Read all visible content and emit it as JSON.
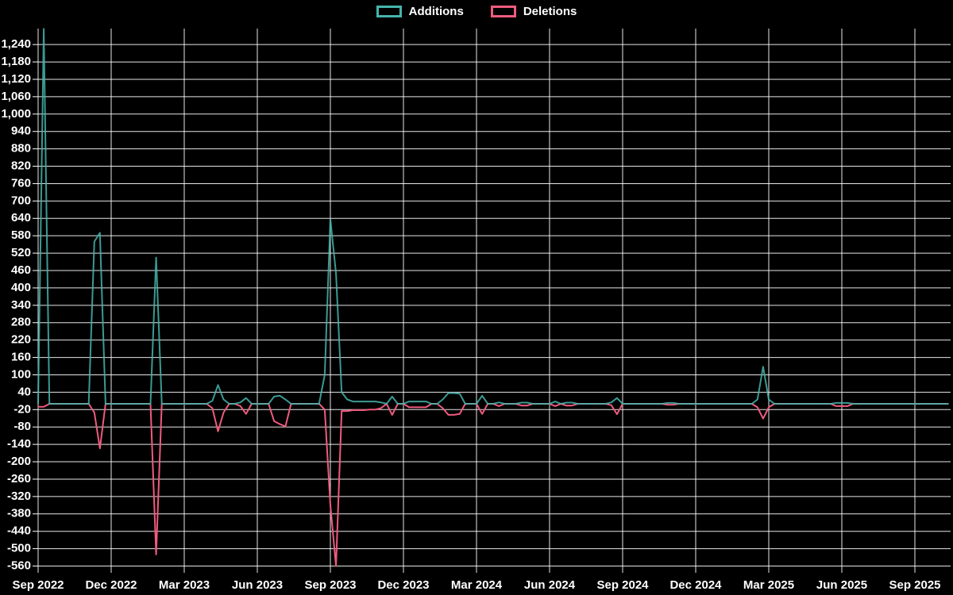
{
  "legend": {
    "items": [
      {
        "label": "Additions",
        "color": "#45b5ad"
      },
      {
        "label": "Deletions",
        "color": "#ef5b7e"
      }
    ]
  },
  "chart_data": {
    "type": "line",
    "title": "",
    "xlabel": "",
    "ylabel": "",
    "background_color": "#000000",
    "grid": true,
    "grid_color": "#ffffff",
    "legend_position": "top-center",
    "series": [
      {
        "name": "Additions",
        "color": "#45b5ad"
      },
      {
        "name": "Deletions",
        "color": "#ef5b7e"
      }
    ],
    "x_axis": {
      "unit": "weeks",
      "total_weeks": 163,
      "tick_weeks": [
        0,
        13,
        26,
        39,
        52,
        65,
        78,
        91,
        104,
        117,
        130,
        143,
        156
      ],
      "tick_labels": [
        "Sep 2022",
        "Dec 2022",
        "Mar 2023",
        "Jun 2023",
        "Sep 2023",
        "Dec 2023",
        "Mar 2024",
        "Jun 2024",
        "Sep 2024",
        "Dec 2024",
        "Mar 2025",
        "Jun 2025",
        "Sep 2025"
      ]
    },
    "y_axis": {
      "min": -583,
      "max": 1295,
      "tick_start": -560,
      "tick_end": 1240,
      "tick_step": 60
    },
    "default_week_value": {
      "additions": 0,
      "deletions": 0
    },
    "weekly_points": {
      "0": [
        0,
        -10
      ],
      "1": [
        1294,
        -10
      ],
      "10": [
        560,
        -30
      ],
      "11": [
        590,
        -154
      ],
      "21": [
        505,
        -520
      ],
      "31": [
        10,
        -15
      ],
      "32": [
        65,
        -95
      ],
      "33": [
        15,
        -30
      ],
      "36": [
        5,
        -8
      ],
      "37": [
        20,
        -35
      ],
      "42": [
        25,
        -60
      ],
      "43": [
        28,
        -70
      ],
      "44": [
        15,
        -78
      ],
      "51": [
        100,
        -20
      ],
      "52": [
        637,
        -350
      ],
      "53": [
        450,
        -560
      ],
      "54": [
        40,
        -25
      ],
      "55": [
        15,
        -25
      ],
      "56": [
        8,
        -22
      ],
      "57": [
        8,
        -22
      ],
      "58": [
        8,
        -22
      ],
      "59": [
        8,
        -20
      ],
      "60": [
        8,
        -20
      ],
      "61": [
        5,
        -15
      ],
      "63": [
        25,
        -38
      ],
      "66": [
        8,
        -12
      ],
      "67": [
        8,
        -12
      ],
      "68": [
        8,
        -12
      ],
      "69": [
        8,
        -12
      ],
      "72": [
        15,
        -15
      ],
      "73": [
        37,
        -38
      ],
      "74": [
        37,
        -38
      ],
      "75": [
        35,
        -35
      ],
      "79": [
        28,
        -35
      ],
      "82": [
        5,
        -8
      ],
      "86": [
        4,
        -6
      ],
      "87": [
        4,
        -6
      ],
      "92": [
        8,
        -8
      ],
      "94": [
        4,
        -6
      ],
      "95": [
        4,
        -6
      ],
      "102": [
        5,
        -5
      ],
      "103": [
        20,
        -36
      ],
      "112": [
        3,
        -3
      ],
      "113": [
        3,
        -3
      ],
      "128": [
        15,
        -12
      ],
      "129": [
        128,
        -51
      ],
      "130": [
        15,
        -12
      ],
      "142": [
        3,
        -8
      ],
      "143": [
        3,
        -8
      ],
      "144": [
        3,
        -8
      ]
    }
  }
}
